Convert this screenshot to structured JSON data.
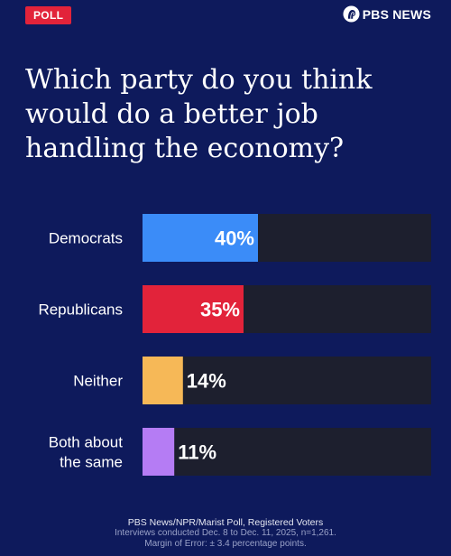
{
  "header": {
    "badge_label": "POLL",
    "brand_name": "PBS NEWS",
    "brand_icon": "pbs-head-logo-icon"
  },
  "title": "Which party do you think would do a better job handling the economy?",
  "chart_data": {
    "type": "bar",
    "orientation": "horizontal",
    "categories": [
      "Democrats",
      "Republicans",
      "Neither",
      "Both about the same"
    ],
    "category_lines": [
      [
        "Democrats"
      ],
      [
        "Republicans"
      ],
      [
        "Neither"
      ],
      [
        "Both about",
        "the same"
      ]
    ],
    "values": [
      40,
      35,
      14,
      11
    ],
    "labels": [
      "40%",
      "35%",
      "14%",
      "11%"
    ],
    "colors": [
      "#3b8cf8",
      "#e2233a",
      "#f6b857",
      "#b57cf4"
    ],
    "xlim": [
      0,
      100
    ],
    "track_color": "#1d1f2e",
    "grid": false
  },
  "footer": {
    "source": "PBS News/NPR/Marist Poll, Registered Voters",
    "interviews": "Interviews conducted Dec. 8 to Dec. 11, 2025, n=1,261.",
    "margin": "Margin of Error: ± 3.4 percentage points."
  }
}
